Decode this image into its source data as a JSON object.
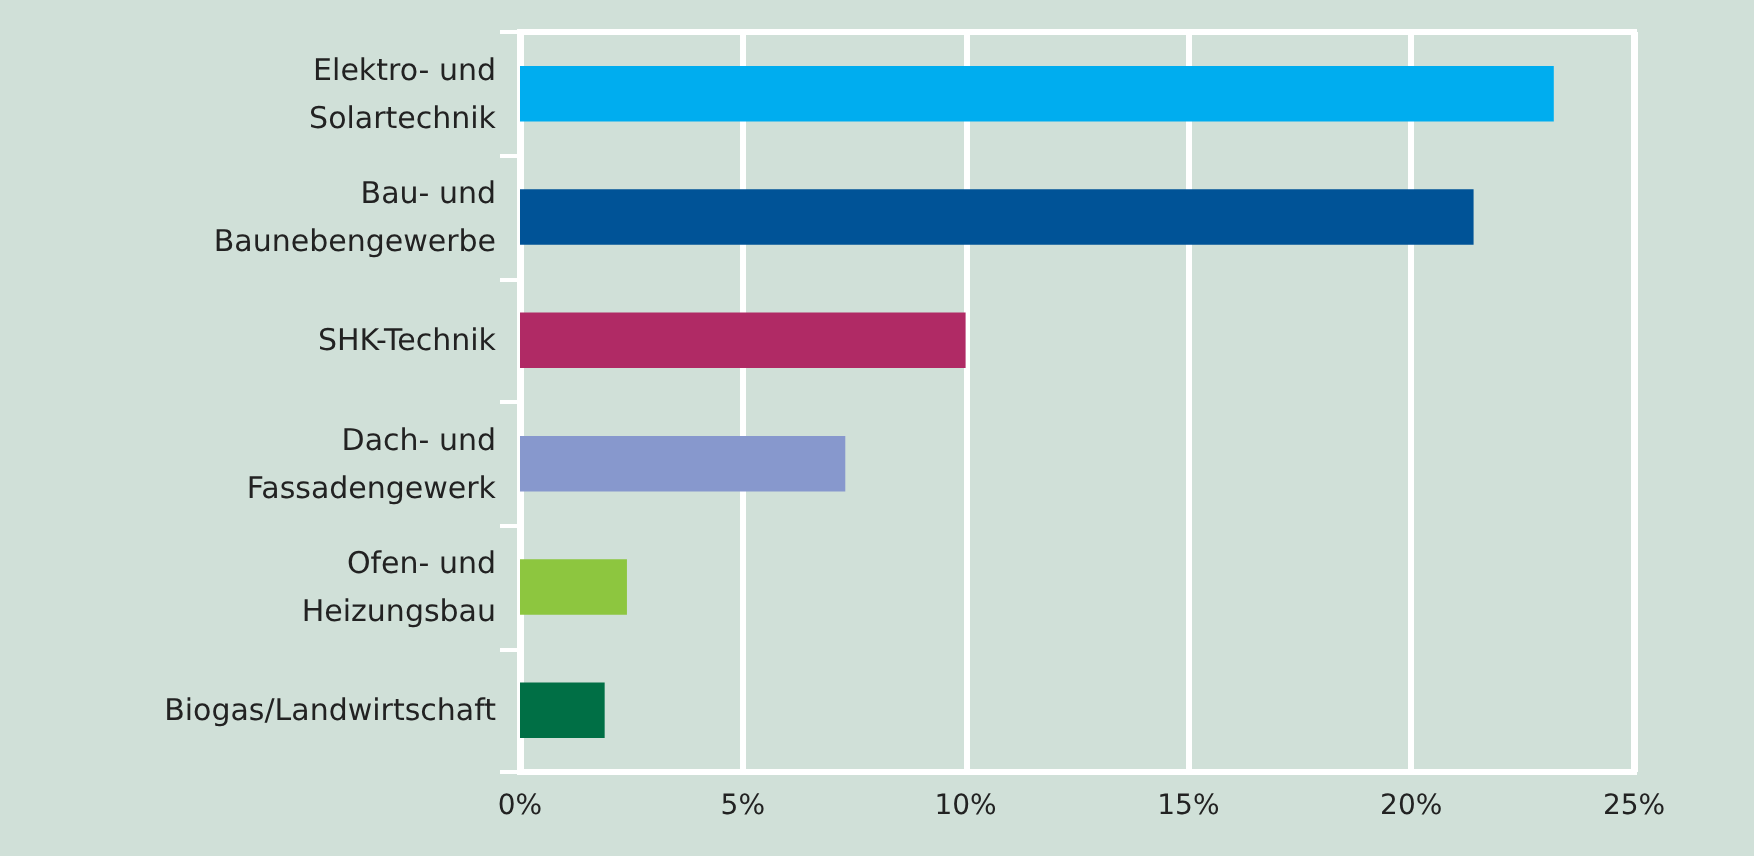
{
  "chart_data": {
    "type": "bar",
    "orientation": "horizontal",
    "categories": [
      "Elektro- und\nSolartechnik",
      "Bau- und\nBaunebengewerbe",
      "SHK-Technik",
      "Dach- und\nFassadengewerk",
      "Ofen- und\nHeizungsbau",
      "Biogas/Landwirtschaft"
    ],
    "values": [
      23.2,
      21.4,
      10,
      7.3,
      2.4,
      1.9
    ],
    "colors": [
      "#00adef",
      "#005397",
      "#b02a65",
      "#8798cd",
      "#8dc63f",
      "#006f45"
    ],
    "xlim": [
      0,
      25
    ],
    "xticks": [
      {
        "value": 0,
        "label": "0%"
      },
      {
        "value": 5,
        "label": "5%"
      },
      {
        "value": 10,
        "label": "10%"
      },
      {
        "value": 15,
        "label": "15%"
      },
      {
        "value": 20,
        "label": "20%"
      },
      {
        "value": 25,
        "label": "25%"
      }
    ],
    "grid": "x"
  }
}
